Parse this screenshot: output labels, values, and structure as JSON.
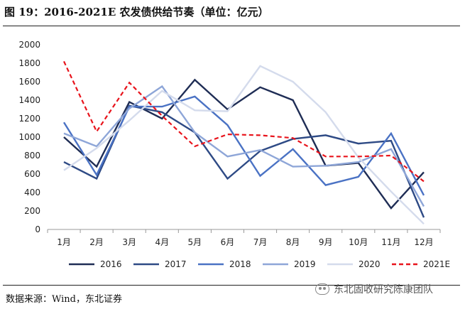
{
  "header": {
    "title": "图 19：2016-2021E 农发债供给节奏（单位：亿元）"
  },
  "footer": {
    "source": "数据来源：Wind，东北证券",
    "watermark": "东北固收研究陈康团队"
  },
  "chart_data": {
    "type": "line",
    "title": "",
    "xlabel": "",
    "ylabel": "",
    "categories": [
      "1月",
      "2月",
      "3月",
      "4月",
      "5月",
      "6月",
      "7月",
      "8月",
      "9月",
      "10月",
      "11月",
      "12月"
    ],
    "ylim": [
      0,
      2000
    ],
    "yticks": [
      0,
      200,
      400,
      600,
      800,
      1000,
      1200,
      1400,
      1600,
      1800,
      2000
    ],
    "grid": false,
    "legend_position": "bottom",
    "series": [
      {
        "name": "2016",
        "color": "#1f2d55",
        "dashed": false,
        "values": [
          1000,
          680,
          1380,
          1200,
          1620,
          1300,
          1540,
          1400,
          690,
          720,
          230,
          620
        ]
      },
      {
        "name": "2017",
        "color": "#2e4a85",
        "dashed": false,
        "values": [
          730,
          550,
          1340,
          1270,
          1050,
          550,
          850,
          980,
          1020,
          930,
          960,
          130
        ]
      },
      {
        "name": "2018",
        "color": "#4a72c4",
        "dashed": false,
        "values": [
          1160,
          590,
          1330,
          1330,
          1440,
          1130,
          580,
          870,
          480,
          570,
          1040,
          370
        ]
      },
      {
        "name": "2019",
        "color": "#8ea6d8",
        "dashed": false,
        "values": [
          1040,
          900,
          1310,
          1550,
          1050,
          790,
          860,
          680,
          690,
          730,
          870,
          250
        ]
      },
      {
        "name": "2020",
        "color": "#d4dbec",
        "dashed": false,
        "values": [
          640,
          880,
          1180,
          1500,
          1290,
          1280,
          1770,
          1600,
          1270,
          780,
          410,
          60
        ]
      },
      {
        "name": "2021E",
        "color": "#e8141c",
        "dashed": true,
        "values": [
          1820,
          1060,
          1590,
          1230,
          900,
          1030,
          1020,
          990,
          790,
          790,
          800,
          520
        ]
      }
    ]
  }
}
